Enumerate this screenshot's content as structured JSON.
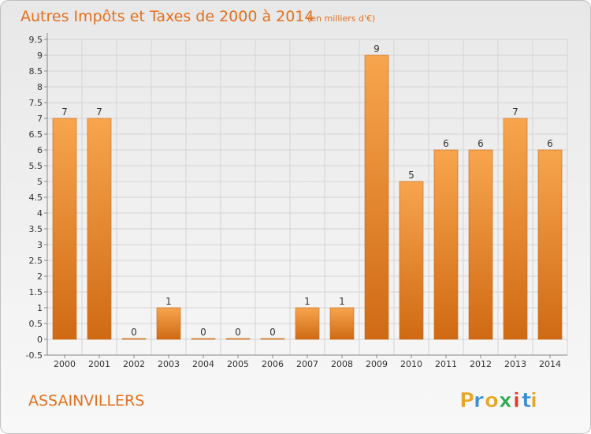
{
  "chart_data": {
    "type": "bar",
    "title": "Autres Impôts et Taxes de 2000 à 2014",
    "subtitle": "(en milliers d'€)",
    "categories": [
      "2000",
      "2001",
      "2002",
      "2003",
      "2004",
      "2005",
      "2006",
      "2007",
      "2008",
      "2009",
      "2010",
      "2011",
      "2012",
      "2013",
      "2014"
    ],
    "values": [
      7,
      7,
      0,
      1,
      0,
      0,
      0,
      1,
      1,
      9,
      5,
      6,
      6,
      7,
      6
    ],
    "value_labels": [
      "7",
      "7",
      "0",
      "1",
      "0",
      "0",
      "0",
      "1",
      "1",
      "9",
      "5",
      "6",
      "6",
      "7",
      "6"
    ],
    "y_ticks": [
      "-0.5",
      "0",
      "0.5",
      "1",
      "1.5",
      "2",
      "2.5",
      "3",
      "3.5",
      "4",
      "4.5",
      "5",
      "5.5",
      "6",
      "6.5",
      "7",
      "7.5",
      "8",
      "8.5",
      "9",
      "9.5"
    ],
    "ylim": [
      -0.5,
      9.5
    ],
    "grid": true,
    "bar_color": "#F28C28",
    "bar_color_dark": "#D26A12"
  },
  "commune": "ASSAINVILLERS",
  "brand": {
    "letters": [
      "P",
      "r",
      "o",
      "x",
      "i",
      "t",
      "i"
    ],
    "colors": [
      "#E9A526",
      "#3A8FD6",
      "#E9A526",
      "#2FA84F",
      "#E23B2E",
      "#3A8FD6",
      "#E9A526"
    ]
  }
}
